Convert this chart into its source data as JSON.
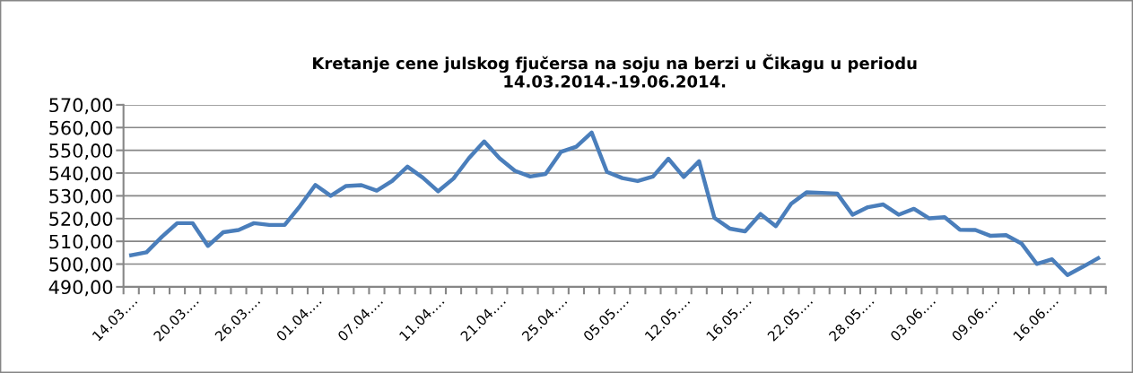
{
  "chart_data": {
    "type": "line",
    "title": "Kretanje cene julskog fjučersa na soju na berzi u Čikagu u periodu\n14.03.2014.-19.06.2014.",
    "categories": [
      "14.03.…",
      null,
      null,
      null,
      "20.03.…",
      null,
      null,
      null,
      "26.03.…",
      null,
      null,
      null,
      "01.04.…",
      null,
      null,
      null,
      "07.04.…",
      null,
      null,
      null,
      "11.04.…",
      null,
      null,
      null,
      "21.04.…",
      null,
      null,
      null,
      "25.04.…",
      null,
      null,
      null,
      "05.05.…",
      null,
      null,
      null,
      "12.05.…",
      null,
      null,
      null,
      "16.05.…",
      null,
      null,
      null,
      "22.05.…",
      null,
      null,
      null,
      "28.05.…",
      null,
      null,
      null,
      "03.06.…",
      null,
      null,
      null,
      "09.06.…",
      null,
      null,
      null,
      "16.06.…",
      null,
      null,
      null
    ],
    "series": [
      {
        "color": "#4a7ebb",
        "values": [
          503.9,
          505.2,
          512,
          518,
          518,
          508,
          514,
          515,
          518,
          517.2,
          517.2,
          525.5,
          534.8,
          530,
          534.3,
          534.7,
          532.3,
          536.5,
          542.8,
          538,
          532,
          537.6,
          546.5,
          553.9,
          546.5,
          541,
          538.5,
          539.6,
          549.3,
          551.6,
          557.8,
          540.5,
          537.8,
          536.5,
          538.5,
          546.3,
          538.3,
          545.2,
          520.3,
          515.6,
          514.4,
          522,
          516.7,
          526.5,
          531.5,
          531.3,
          531,
          521.7,
          525,
          526.2,
          521.7,
          524.3,
          520.1,
          520.6,
          515.1,
          515,
          512.4,
          512.7,
          509.1,
          500.1,
          502.1,
          495.2,
          498.8,
          502.6
        ]
      }
    ],
    "ylim": [
      490,
      570
    ],
    "yticks": [
      {
        "value": 490,
        "label": "490,00"
      },
      {
        "value": 500,
        "label": "500,00"
      },
      {
        "value": 510,
        "label": "510,00"
      },
      {
        "value": 520,
        "label": "520,00"
      },
      {
        "value": 530,
        "label": "530,00"
      },
      {
        "value": 540,
        "label": "540,00"
      },
      {
        "value": 550,
        "label": "550,00"
      },
      {
        "value": 560,
        "label": "560,00"
      },
      {
        "value": 570,
        "label": "570,00"
      }
    ],
    "grid": "y",
    "legend": false,
    "marker": "none",
    "line_style": "solid"
  }
}
